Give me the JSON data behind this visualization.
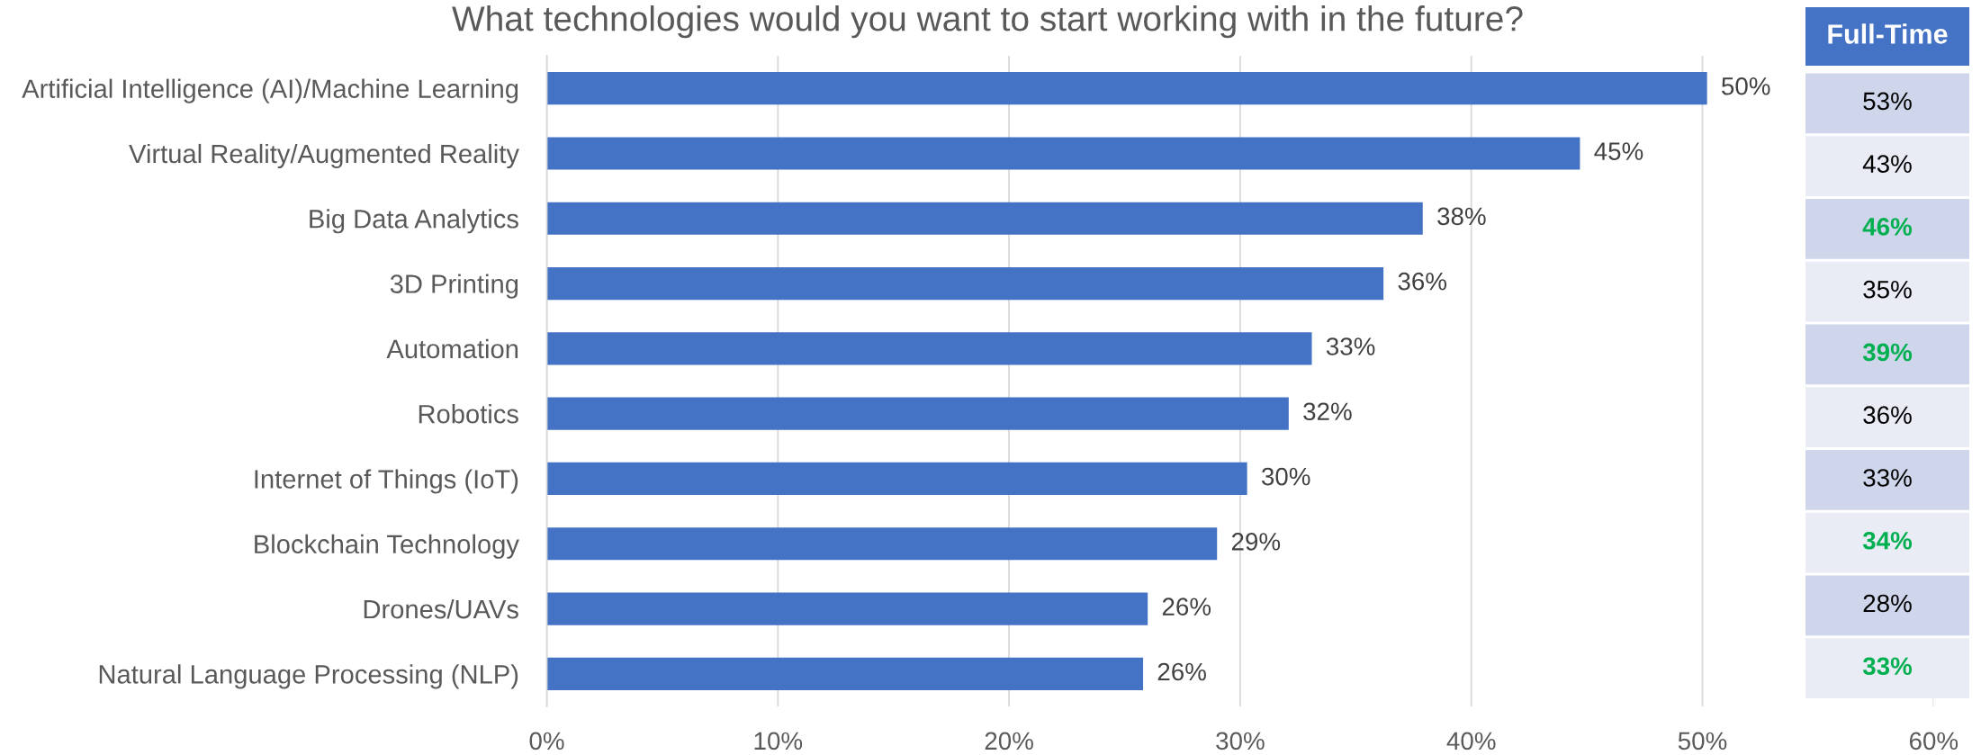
{
  "chart_data": [
    {
      "type": "bar",
      "title": "What technologies would you want to start working with in the future?",
      "orientation": "horizontal",
      "categories": [
        "Artificial Intelligence (AI)/Machine Learning",
        "Virtual Reality/Augmented Reality",
        "Big Data Analytics",
        "3D Printing",
        "Automation",
        "Robotics",
        "Internet of Things (IoT)",
        "Blockchain Technology",
        "Drones/UAVs",
        "Natural Language Processing (NLP)"
      ],
      "values": [
        50.2,
        44.7,
        37.9,
        36.2,
        33.1,
        32.1,
        30.3,
        29.0,
        26.0,
        25.8
      ],
      "value_labels": [
        "50%",
        "45%",
        "38%",
        "36%",
        "33%",
        "32%",
        "30%",
        "29%",
        "26%",
        "26%"
      ],
      "color": "#4472c4",
      "xlim": [
        0,
        60
      ],
      "xticks": [
        {
          "value": 0,
          "label": "0%"
        },
        {
          "value": 10,
          "label": "10%"
        },
        {
          "value": 20,
          "label": "20%"
        },
        {
          "value": 30,
          "label": "30%"
        },
        {
          "value": 40,
          "label": "40%"
        },
        {
          "value": 50,
          "label": "50%"
        },
        {
          "value": 60,
          "label": "60%"
        }
      ],
      "grid": "x"
    },
    {
      "type": "other",
      "title": "Full-Time",
      "value_labels": [
        "53%",
        "43%",
        "46%",
        "35%",
        "39%",
        "36%",
        "33%",
        "34%",
        "28%",
        "33%"
      ],
      "colors": [
        "#000000",
        "#000000",
        "#00b050",
        "#000000",
        "#00b050",
        "#000000",
        "#000000",
        "#00b050",
        "#000000",
        "#00b050"
      ]
    }
  ]
}
